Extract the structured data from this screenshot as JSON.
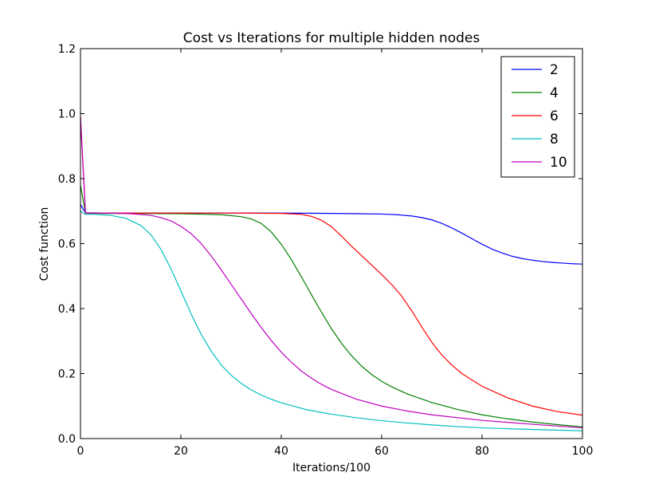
{
  "chart_data": {
    "type": "line",
    "title": "Cost vs Iterations for multiple hidden nodes",
    "xlabel": "Iterations/100",
    "ylabel": "Cost function",
    "xlim": [
      0,
      100
    ],
    "ylim": [
      0.0,
      1.2
    ],
    "xticks": [
      0,
      20,
      40,
      60,
      80,
      100
    ],
    "xtick_labels": [
      "0",
      "20",
      "40",
      "60",
      "80",
      "100"
    ],
    "yticks": [
      0.0,
      0.2,
      0.4,
      0.6,
      0.8,
      1.0,
      1.2
    ],
    "ytick_labels": [
      "0.0",
      "0.2",
      "0.4",
      "0.6",
      "0.8",
      "1.0",
      "1.2"
    ],
    "grid": false,
    "legend_position": "top-right",
    "series": [
      {
        "name": "2",
        "color": "#0000ff",
        "x": [
          0,
          1,
          5,
          10,
          20,
          30,
          40,
          50,
          55,
          60,
          63,
          66,
          68,
          70,
          72,
          74,
          76,
          78,
          80,
          82,
          84,
          86,
          88,
          90,
          92,
          94,
          96,
          98,
          100
        ],
        "y": [
          0.72,
          0.695,
          0.694,
          0.694,
          0.694,
          0.694,
          0.694,
          0.693,
          0.692,
          0.691,
          0.689,
          0.685,
          0.68,
          0.673,
          0.662,
          0.648,
          0.632,
          0.615,
          0.598,
          0.583,
          0.571,
          0.561,
          0.554,
          0.549,
          0.545,
          0.542,
          0.54,
          0.538,
          0.537
        ]
      },
      {
        "name": "4",
        "color": "#008000",
        "x": [
          0,
          1,
          5,
          10,
          20,
          28,
          32,
          34,
          36,
          38,
          40,
          42,
          44,
          46,
          48,
          50,
          52,
          54,
          56,
          58,
          60,
          62,
          65,
          70,
          75,
          80,
          85,
          90,
          95,
          100
        ],
        "y": [
          0.78,
          0.693,
          0.693,
          0.693,
          0.692,
          0.689,
          0.683,
          0.676,
          0.662,
          0.636,
          0.598,
          0.551,
          0.498,
          0.443,
          0.389,
          0.338,
          0.293,
          0.255,
          0.223,
          0.197,
          0.176,
          0.159,
          0.138,
          0.111,
          0.09,
          0.073,
          0.061,
          0.051,
          0.043,
          0.036
        ]
      },
      {
        "name": "6",
        "color": "#ff0000",
        "x": [
          0,
          1,
          5,
          10,
          20,
          30,
          40,
          44,
          46,
          48,
          50,
          52,
          54,
          56,
          58,
          60,
          62,
          64,
          66,
          68,
          70,
          72,
          74,
          76,
          78,
          80,
          85,
          90,
          95,
          100
        ],
        "y": [
          0.99,
          0.694,
          0.694,
          0.694,
          0.694,
          0.694,
          0.693,
          0.69,
          0.684,
          0.672,
          0.652,
          0.623,
          0.592,
          0.563,
          0.534,
          0.505,
          0.474,
          0.438,
          0.393,
          0.343,
          0.296,
          0.257,
          0.226,
          0.2,
          0.18,
          0.161,
          0.126,
          0.1,
          0.083,
          0.072
        ]
      },
      {
        "name": "8",
        "color": "#00bfbf",
        "x": [
          0,
          1,
          3,
          6,
          9,
          12,
          14,
          16,
          18,
          20,
          22,
          24,
          26,
          28,
          30,
          32,
          34,
          36,
          38,
          40,
          45,
          50,
          55,
          60,
          65,
          70,
          75,
          80,
          90,
          100
        ],
        "y": [
          0.7,
          0.69,
          0.69,
          0.687,
          0.678,
          0.656,
          0.628,
          0.583,
          0.523,
          0.455,
          0.385,
          0.322,
          0.27,
          0.227,
          0.195,
          0.17,
          0.15,
          0.134,
          0.121,
          0.11,
          0.089,
          0.075,
          0.064,
          0.055,
          0.048,
          0.042,
          0.037,
          0.033,
          0.028,
          0.024
        ]
      },
      {
        "name": "10",
        "color": "#bf00bf",
        "x": [
          0,
          1,
          5,
          10,
          14,
          16,
          18,
          20,
          22,
          24,
          26,
          28,
          30,
          32,
          34,
          36,
          38,
          40,
          42,
          44,
          46,
          48,
          50,
          55,
          60,
          65,
          70,
          80,
          90,
          100
        ],
        "y": [
          0.99,
          0.694,
          0.694,
          0.692,
          0.687,
          0.68,
          0.67,
          0.653,
          0.631,
          0.601,
          0.563,
          0.52,
          0.475,
          0.43,
          0.385,
          0.342,
          0.302,
          0.266,
          0.235,
          0.208,
          0.186,
          0.167,
          0.151,
          0.121,
          0.1,
          0.085,
          0.073,
          0.056,
          0.044,
          0.033
        ]
      }
    ]
  }
}
